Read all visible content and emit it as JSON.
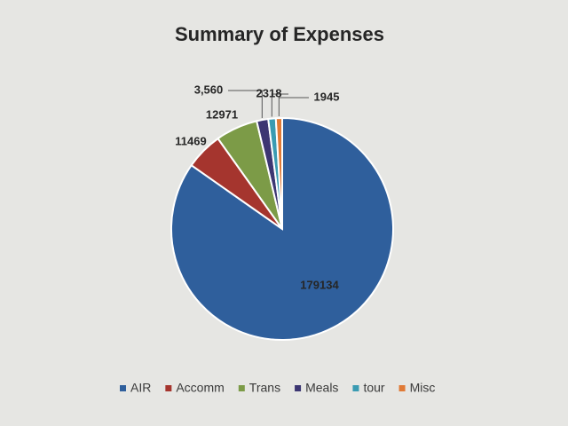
{
  "chart_data": {
    "type": "pie",
    "title": "Summary of Expenses",
    "categories": [
      "AIR",
      "Accomm",
      "Trans",
      "Meals",
      "tour",
      "Misc"
    ],
    "values": [
      179134,
      11469,
      12971,
      3560,
      2318,
      1945
    ],
    "value_labels": [
      "179134",
      "11469",
      "12971",
      "3,560",
      "2318",
      "1945"
    ],
    "colors": [
      "#2f5f9c",
      "#a5352e",
      "#7c9b47",
      "#3c3672",
      "#3a9bb2",
      "#e07a36"
    ],
    "legend": "bottom"
  }
}
